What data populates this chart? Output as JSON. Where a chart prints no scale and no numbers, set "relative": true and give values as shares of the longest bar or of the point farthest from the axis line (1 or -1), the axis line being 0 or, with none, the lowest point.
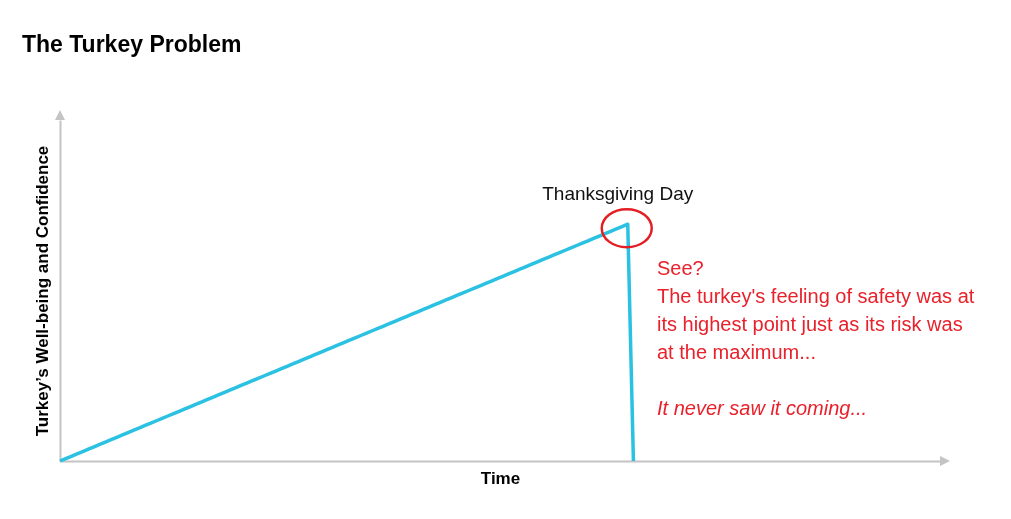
{
  "chart_data": {
    "type": "line",
    "title": "The Turkey Problem",
    "xlabel": "Time",
    "ylabel": "Turkey’s Well-being and Confidence",
    "relative": true,
    "categories": [
      null,
      null,
      null,
      null,
      null,
      null,
      null,
      null,
      null,
      null,
      null,
      null,
      null,
      null,
      null,
      null,
      null,
      null,
      null,
      null,
      null,
      null,
      null,
      null,
      null,
      null,
      null,
      null,
      null,
      null,
      null,
      null,
      null,
      null,
      null,
      null,
      null,
      null,
      null,
      null,
      null,
      null,
      null,
      null,
      null,
      null,
      null,
      null,
      null,
      null,
      null,
      null,
      null,
      null,
      null,
      null,
      null,
      null,
      null,
      null,
      null,
      null,
      null,
      null,
      null,
      null,
      null,
      null,
      null,
      null,
      null,
      null,
      null,
      null,
      null,
      null,
      null,
      null,
      null,
      null,
      null,
      null,
      null,
      null,
      null,
      null,
      null,
      null,
      null,
      null,
      null,
      null,
      null,
      null,
      null,
      null,
      null,
      null,
      null,
      null,
      null,
      null,
      null,
      null,
      null,
      null,
      null,
      null,
      null,
      null,
      null,
      null,
      null,
      null,
      null,
      null,
      null,
      null,
      null,
      null,
      null,
      null,
      null,
      null,
      null,
      null,
      null,
      null,
      null,
      null,
      null,
      null,
      null,
      null,
      null,
      null,
      null,
      null,
      null,
      null,
      null,
      null,
      null,
      null,
      null,
      null,
      null,
      null,
      null,
      null,
      null,
      null,
      null,
      null,
      null,
      null
    ],
    "color": "#2bc1e2",
    "values": [
      0,
      0.01,
      0.02,
      0.03,
      0.04,
      0.05,
      0.06,
      0.07,
      0.08,
      0.09,
      0.1,
      0.11,
      0.12,
      0.13,
      0.14,
      0.15,
      0.16,
      0.17,
      0.18,
      0.19,
      0.2,
      0.21,
      0.22,
      0.23,
      0.24,
      0.25,
      0.26,
      0.27,
      0.28,
      0.29,
      0.3,
      0.31,
      0.32,
      0.33,
      0.34,
      0.35,
      0.36,
      0.37,
      0.38,
      0.39,
      0.4,
      0.41,
      0.42,
      0.43,
      0.44,
      0.45,
      0.46,
      0.47,
      0.48,
      0.49,
      0.5,
      0.51,
      0.52,
      0.53,
      0.54,
      0.55,
      0.56,
      0.57,
      0.58,
      0.59,
      0.6,
      0.61,
      0.62,
      0.63,
      0.64,
      0.65,
      0.66,
      0.67,
      0.68,
      0.69,
      0.7,
      0.71,
      0.72,
      0.73,
      0.74,
      0.75,
      0.76,
      0.77,
      0.78,
      0.79,
      0.8,
      0.81,
      0.82,
      0.83,
      0.84,
      0.85,
      0.86,
      0.87,
      0.88,
      0.89,
      0.9,
      0.91,
      0.92,
      0.93,
      0.94,
      0.95,
      0.96,
      0.97,
      0.98,
      0.99,
      1,
      0,
      null,
      null,
      null,
      null,
      null,
      null,
      null,
      null,
      null,
      null,
      null,
      null,
      null,
      null,
      null,
      null,
      null,
      null,
      null,
      null,
      null,
      null,
      null,
      null,
      null,
      null,
      null,
      null,
      null,
      null,
      null,
      null,
      null,
      null,
      null,
      null,
      null,
      null,
      null,
      null,
      null,
      null,
      null,
      null,
      null,
      null,
      null,
      null,
      null,
      null,
      null,
      null,
      null,
      null
    ],
    "annotations": [
      {
        "text": "Thanksgiving Day",
        "y": 1
      },
      "See?",
      "The turkey's feeling of safety was at its highest point just as its risk was at the maximum...",
      "It never saw it coming..."
    ]
  }
}
